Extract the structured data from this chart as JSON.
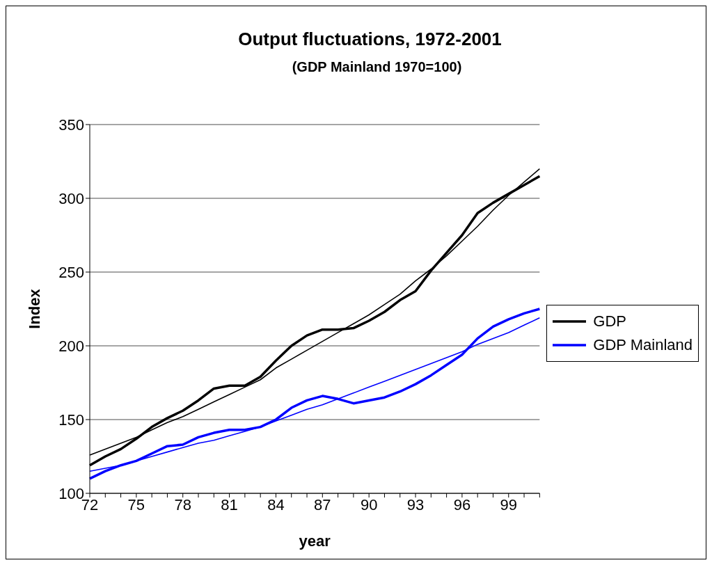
{
  "chart_data": {
    "type": "line",
    "title": "Output fluctuations, 1972-2001",
    "subtitle": "(GDP Mainland 1970=100)",
    "xlabel": "year",
    "ylabel": "Index",
    "categories": [
      "72",
      null,
      null,
      "75",
      null,
      null,
      "78",
      null,
      null,
      "81",
      null,
      null,
      "84",
      null,
      null,
      "87",
      null,
      null,
      "90",
      null,
      null,
      "93",
      null,
      null,
      "96",
      null,
      null,
      "99",
      null,
      null
    ],
    "series": [
      {
        "name": "GDP",
        "color": "#000000",
        "values": [
          119,
          125,
          130,
          137,
          145,
          151,
          156,
          163,
          171,
          173,
          173,
          179,
          190,
          200,
          207,
          211,
          211,
          212,
          217,
          223,
          231,
          237,
          251,
          263,
          275,
          290,
          297,
          303,
          309,
          315
        ]
      },
      {
        "name": "GDP Mainland",
        "color": "#0000ff",
        "values": [
          110,
          115,
          119,
          122,
          127,
          132,
          133,
          138,
          141,
          143,
          143,
          145,
          150,
          158,
          163,
          166,
          164,
          161,
          163,
          165,
          169,
          174,
          180,
          187,
          194,
          205,
          213,
          218,
          222,
          225
        ]
      },
      {
        "color": "#000000",
        "values": [
          126,
          130,
          134,
          138,
          143,
          148,
          152,
          157,
          162,
          167,
          172,
          177,
          185,
          191,
          197,
          203,
          209,
          215,
          221,
          228,
          235,
          244,
          252,
          261,
          271,
          281,
          292,
          302,
          311,
          320
        ]
      },
      {
        "color": "#0000ff",
        "values": [
          115,
          117,
          119,
          122,
          125,
          128,
          131,
          134,
          136,
          139,
          142,
          145,
          149,
          153,
          157,
          160,
          164,
          168,
          172,
          176,
          180,
          184,
          188,
          192,
          196,
          201,
          205,
          209,
          214,
          219
        ]
      }
    ],
    "ylim": [
      100,
      350
    ],
    "yticks": [
      100,
      150,
      200,
      250,
      300,
      350
    ],
    "grid": "y",
    "legend": "right",
    "marker": "none",
    "line_style": "solid"
  }
}
